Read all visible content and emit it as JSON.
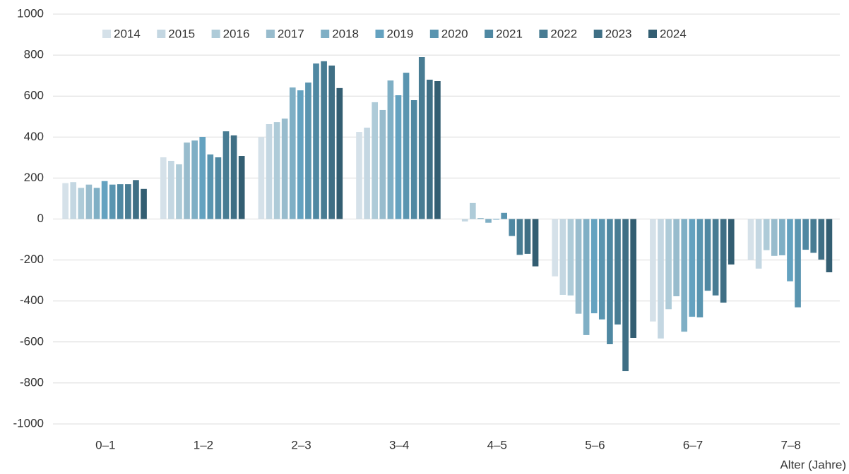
{
  "chart_data": {
    "type": "bar",
    "x_label": "Alter (Jahre)",
    "categories": [
      "0–1",
      "1–2",
      "2–3",
      "3–4",
      "4–5",
      "5–6",
      "6–7",
      "7–8"
    ],
    "series": [
      {
        "name": "2014",
        "color": "#d5e1e9",
        "values": [
          175,
          301,
          400,
          425,
          2,
          -280,
          -500,
          -200
        ]
      },
      {
        "name": "2015",
        "color": "#c4d7e2",
        "values": [
          180,
          284,
          463,
          446,
          -12,
          -370,
          -583,
          -242
        ]
      },
      {
        "name": "2016",
        "color": "#aecbd8",
        "values": [
          152,
          267,
          473,
          570,
          78,
          -373,
          -440,
          -152
        ]
      },
      {
        "name": "2017",
        "color": "#98bccd",
        "values": [
          168,
          373,
          490,
          532,
          5,
          -462,
          -377,
          -180
        ]
      },
      {
        "name": "2018",
        "color": "#7fafc5",
        "values": [
          152,
          383,
          642,
          676,
          -18,
          -566,
          -550,
          -177
        ]
      },
      {
        "name": "2019",
        "color": "#64a2c0",
        "values": [
          185,
          401,
          628,
          604,
          -3,
          -460,
          -477,
          -304
        ]
      },
      {
        "name": "2020",
        "color": "#5a95b0",
        "values": [
          168,
          315,
          666,
          714,
          30,
          -490,
          -480,
          -431
        ]
      },
      {
        "name": "2021",
        "color": "#4f88a2",
        "values": [
          170,
          301,
          759,
          580,
          -83,
          -611,
          -350,
          -150
        ]
      },
      {
        "name": "2022",
        "color": "#487c93",
        "values": [
          170,
          428,
          770,
          790,
          -175,
          -515,
          -373,
          -165
        ]
      },
      {
        "name": "2023",
        "color": "#3f6f85",
        "values": [
          190,
          408,
          749,
          680,
          -170,
          -742,
          -408,
          -198
        ]
      },
      {
        "name": "2024",
        "color": "#335e72",
        "values": [
          147,
          308,
          639,
          673,
          -231,
          -580,
          -222,
          -260
        ]
      }
    ],
    "ylim": [
      -1000,
      1000
    ],
    "yticks": [
      -1000,
      -800,
      -600,
      -400,
      -200,
      0,
      200,
      400,
      600,
      800,
      1000
    ],
    "grid": true
  }
}
